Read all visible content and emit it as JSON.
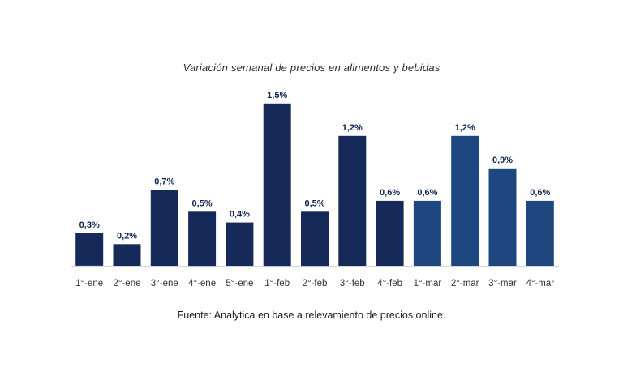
{
  "chart_data": {
    "type": "bar",
    "title": "Variación semanal de precios en alimentos y bebidas",
    "source": "Fuente: Analytica en base a relevamiento de precios online.",
    "categories": [
      "1°-ene",
      "2°-ene",
      "3°-ene",
      "4°-ene",
      "5°-ene",
      "1°-feb",
      "2°-feb",
      "3°-feb",
      "4°-feb",
      "1°-mar",
      "2°-mar",
      "3°-mar",
      "4°-mar"
    ],
    "values": [
      0.3,
      0.2,
      0.7,
      0.5,
      0.4,
      1.5,
      0.5,
      1.2,
      0.6,
      0.6,
      1.2,
      0.9,
      0.6
    ],
    "data_labels": [
      "0,3%",
      "0,2%",
      "0,7%",
      "0,5%",
      "0,4%",
      "1,5%",
      "0,5%",
      "1,2%",
      "0,6%",
      "0,6%",
      "1,2%",
      "0,9%",
      "0,6%"
    ],
    "colors": [
      "#162a5a",
      "#162a5a",
      "#162a5a",
      "#162a5a",
      "#162a5a",
      "#162a5a",
      "#162a5a",
      "#162a5a",
      "#162a5a",
      "#1e467f",
      "#1e467f",
      "#1e467f",
      "#1e467f"
    ],
    "label_color": "#0f2350",
    "grid": false,
    "legend": "none"
  }
}
